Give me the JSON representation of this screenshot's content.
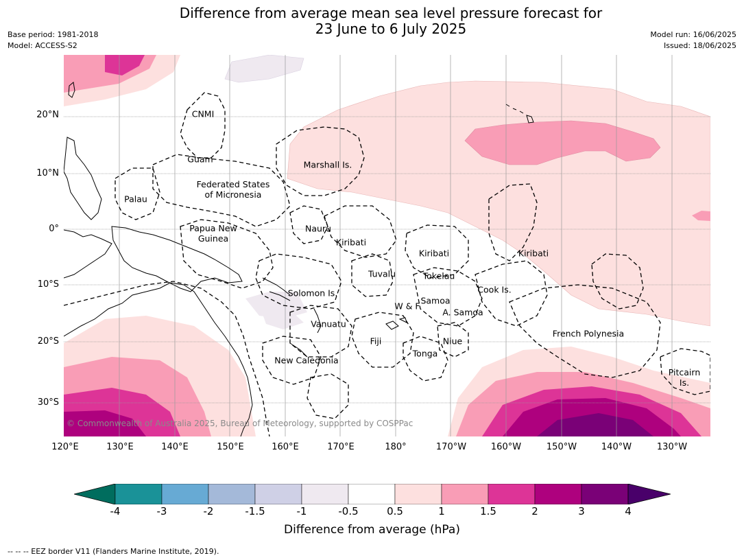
{
  "title_line1": "Difference from average mean sea level pressure forecast for",
  "title_line2": "23 June to 6 July 2025",
  "meta": {
    "base_period": "Base period: 1981-2018",
    "model": "Model: ACCESS-S2",
    "model_run": "Model run: 16/06/2025",
    "issued": "Issued: 18/06/2025"
  },
  "latitude_labels": [
    "20°N",
    "10°N",
    "0°",
    "10°S",
    "20°S",
    "30°S"
  ],
  "longitude_labels": [
    "120°E",
    "130°E",
    "140°E",
    "150°E",
    "160°E",
    "170°E",
    "180°",
    "170°W",
    "160°W",
    "150°W",
    "140°W",
    "130°W"
  ],
  "regions": [
    {
      "name": "CNMI"
    },
    {
      "name": "Guam"
    },
    {
      "name": "Marshall Is."
    },
    {
      "name": "Palau"
    },
    {
      "name": "Federated States\nof Micronesia"
    },
    {
      "name": "Nauru"
    },
    {
      "name": "Papua New\nGuinea"
    },
    {
      "name": "Kiribati"
    },
    {
      "name": "Kiribati"
    },
    {
      "name": "Kiribati"
    },
    {
      "name": "Tuvalu"
    },
    {
      "name": "Tokelau"
    },
    {
      "name": "Solomon Is."
    },
    {
      "name": "Cook Is."
    },
    {
      "name": "W & F"
    },
    {
      "name": "Samoa"
    },
    {
      "name": "A. Samoa"
    },
    {
      "name": "Vanuatu"
    },
    {
      "name": "Fiji"
    },
    {
      "name": "Niue"
    },
    {
      "name": "French Polynesia"
    },
    {
      "name": "Tonga"
    },
    {
      "name": "New Caledonia"
    },
    {
      "name": "Pitcairn\nIs."
    }
  ],
  "copyright": "© Commonwealth of Australia 2025, Bureau of Meteorology, supported by COSPPac",
  "colorbar": {
    "title": "Difference from average (hPa)",
    "ticks": [
      "-4",
      "-3",
      "-2",
      "-1.5",
      "-1",
      "-0.5",
      "0.5",
      "1",
      "1.5",
      "2",
      "3",
      "4"
    ],
    "colors": [
      "#1a9298",
      "#67aad4",
      "#a4b9d9",
      "#cfd0e6",
      "#efe9f0",
      "#ffffff",
      "#fde0df",
      "#f99db6",
      "#dd3497",
      "#ae017e",
      "#7a0177"
    ],
    "under_color": "#006d5e",
    "over_color": "#49006a"
  },
  "legend_note": "--  --  -- EEZ border V11 (Flanders Marine Institute, 2019)."
}
